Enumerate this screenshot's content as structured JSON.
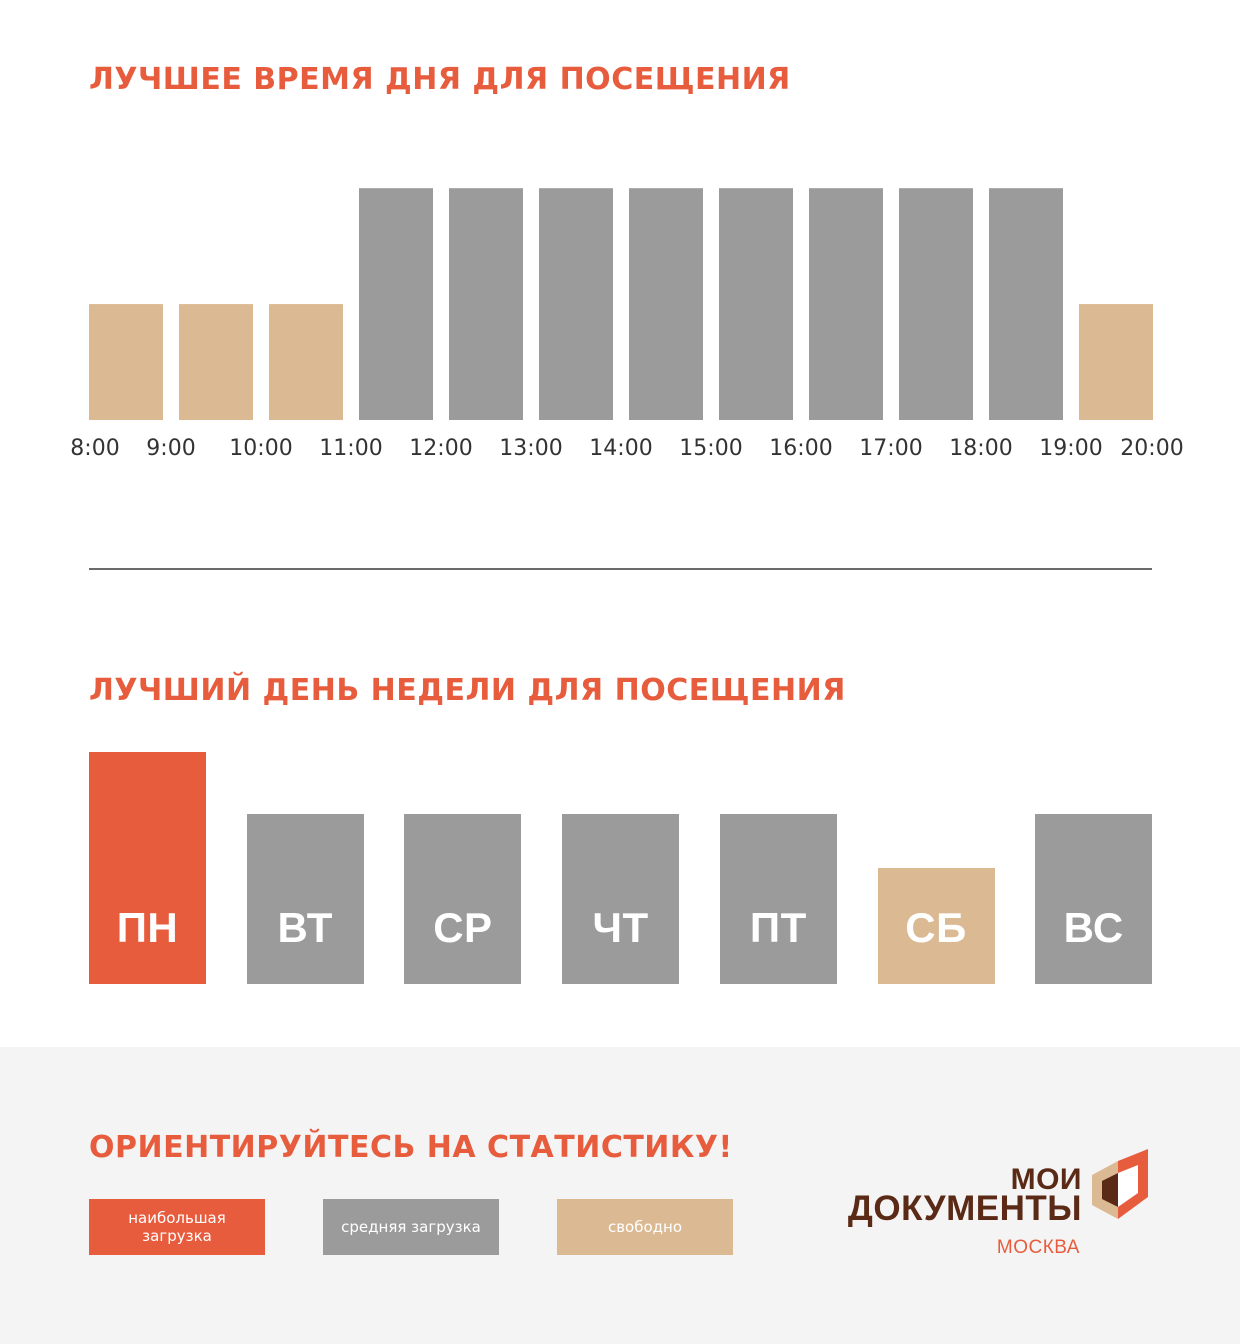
{
  "colors": {
    "accent": "#e85c3e",
    "busiest": "#e85c3e",
    "average": "#9b9b9b",
    "free": "#dbb993",
    "brand_dark": "#5a2a17"
  },
  "time_section": {
    "title": "ЛУЧШЕЕ ВРЕМЯ ДНЯ ДЛЯ ПОСЕЩЕНИЯ"
  },
  "day_section": {
    "title": "ЛУЧШИЙ ДЕНЬ НЕДЕЛИ ДЛЯ ПОСЕЩЕНИЯ"
  },
  "chart_data": [
    {
      "type": "bar",
      "title": "ЛУЧШЕЕ ВРЕМЯ ДНЯ ДЛЯ ПОСЕЩЕНИЯ",
      "tick_labels": [
        "8:00",
        "9:00",
        "10:00",
        "11:00",
        "12:00",
        "13:00",
        "14:00",
        "15:00",
        "16:00",
        "17:00",
        "18:00",
        "19:00",
        "20:00"
      ],
      "intervals": [
        {
          "from": "8:00",
          "to": "9:00",
          "level": 1,
          "status": "свободно"
        },
        {
          "from": "9:00",
          "to": "10:00",
          "level": 1,
          "status": "свободно"
        },
        {
          "from": "10:00",
          "to": "11:00",
          "level": 1,
          "status": "свободно"
        },
        {
          "from": "11:00",
          "to": "12:00",
          "level": 2,
          "status": "средняя загрузка"
        },
        {
          "from": "12:00",
          "to": "13:00",
          "level": 2,
          "status": "средняя загрузка"
        },
        {
          "from": "13:00",
          "to": "14:00",
          "level": 2,
          "status": "средняя загрузка"
        },
        {
          "from": "14:00",
          "to": "15:00",
          "level": 2,
          "status": "средняя загрузка"
        },
        {
          "from": "15:00",
          "to": "16:00",
          "level": 2,
          "status": "средняя загрузка"
        },
        {
          "from": "16:00",
          "to": "17:00",
          "level": 2,
          "status": "средняя загрузка"
        },
        {
          "from": "17:00",
          "to": "18:00",
          "level": 2,
          "status": "средняя загрузка"
        },
        {
          "from": "18:00",
          "to": "19:00",
          "level": 2,
          "status": "средняя загрузка"
        },
        {
          "from": "19:00",
          "to": "20:00",
          "level": 1,
          "status": "свободно"
        }
      ],
      "ylim": [
        0,
        2.2
      ],
      "grid": false
    },
    {
      "type": "bar",
      "title": "ЛУЧШИЙ ДЕНЬ НЕДЕЛИ ДЛЯ ПОСЕЩЕНИЯ",
      "categories": [
        "ПН",
        "ВТ",
        "СР",
        "ЧТ",
        "ПТ",
        "СБ",
        "ВС"
      ],
      "values": [
        3,
        2.2,
        2.2,
        2.2,
        2.2,
        1.5,
        2.2
      ],
      "status": [
        "наибольшая загрузка",
        "средняя загрузка",
        "средняя загрузка",
        "средняя загрузка",
        "средняя загрузка",
        "свободно",
        "средняя загрузка"
      ],
      "ylim": [
        0,
        3
      ],
      "grid": false
    }
  ],
  "footer": {
    "title": "ОРИЕНТИРУЙТЕСЬ НА СТАТИСТИКУ!",
    "legend": {
      "busiest": "наибольшая загрузка",
      "average": "средняя загрузка",
      "free": "свободно"
    }
  },
  "logo": {
    "line1": "МОИ",
    "line2": "ДОКУМЕНТЫ",
    "city": "МОСКВА"
  }
}
